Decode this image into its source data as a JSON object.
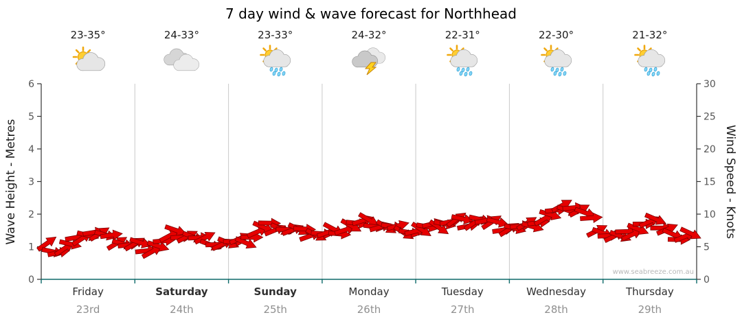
{
  "title": "7 day wind & wave forecast for Northhead",
  "watermark": "www.seabreeze.com.au",
  "days": [
    {
      "temp": "23-35°",
      "icon": "partly-cloudy",
      "name": "Friday",
      "date": "23rd",
      "bold": false
    },
    {
      "temp": "24-33°",
      "icon": "cloudy",
      "name": "Saturday",
      "date": "24th",
      "bold": true
    },
    {
      "temp": "23-33°",
      "icon": "sun-showers",
      "name": "Sunday",
      "date": "25th",
      "bold": true
    },
    {
      "temp": "24-32°",
      "icon": "thunderstorm",
      "name": "Monday",
      "date": "26th",
      "bold": false
    },
    {
      "temp": "22-31°",
      "icon": "sun-showers",
      "name": "Tuesday",
      "date": "27th",
      "bold": false
    },
    {
      "temp": "22-30°",
      "icon": "sun-showers",
      "name": "Wednesday",
      "date": "28th",
      "bold": false
    },
    {
      "temp": "21-32°",
      "icon": "sun-showers",
      "name": "Thursday",
      "date": "29th",
      "bold": false
    }
  ],
  "chart_data": {
    "type": "line",
    "title": "7 day wind & wave forecast for Northhead",
    "marker_style": "red wind arrows",
    "categories": [
      "Friday 23rd",
      "Saturday 24th",
      "Sunday 25th",
      "Monday 26th",
      "Tuesday 27th",
      "Wednesday 28th",
      "Thursday 29th"
    ],
    "series": [
      {
        "name": "Wind Speed",
        "unit": "knots",
        "values": [
          5.0,
          4.3,
          5.2,
          6.8,
          7.3,
          6.5,
          6.0,
          5.3,
          5.2,
          4.6,
          5.8,
          7.0,
          6.8,
          6.2,
          5.8,
          5.5,
          5.5,
          6.0,
          7.3,
          8.2,
          8.0,
          7.5,
          7.2,
          7.0,
          7.0,
          7.5,
          8.3,
          8.7,
          8.5,
          8.0,
          7.8,
          7.5,
          7.5,
          8.0,
          8.7,
          9.0,
          8.7,
          9.3,
          8.5,
          8.0,
          7.8,
          8.2,
          9.0,
          9.8,
          10.8,
          11.2,
          10.0,
          8.0,
          6.8,
          6.3,
          7.3,
          8.5,
          8.8,
          8.0,
          6.0,
          6.5
        ]
      }
    ],
    "left_axis": {
      "label": "Wave Height - Metres",
      "min": 0,
      "max": 6,
      "ticks": [
        0,
        1,
        2,
        3,
        4,
        5,
        6
      ]
    },
    "right_axis": {
      "label": "Wind Speed - Knots",
      "min": 0,
      "max": 30,
      "ticks": [
        0,
        5,
        10,
        15,
        20,
        25,
        30
      ]
    },
    "grid": "vertical day separators",
    "colors": {
      "arrow_fill": "#e60000",
      "arrow_stroke": "#7d0000",
      "grid": "#c9c9c9",
      "axis": "#333333",
      "bottom_axis": "#0e6a6a",
      "tick_text": "#555555",
      "watermark": "#b8b8b8"
    }
  }
}
